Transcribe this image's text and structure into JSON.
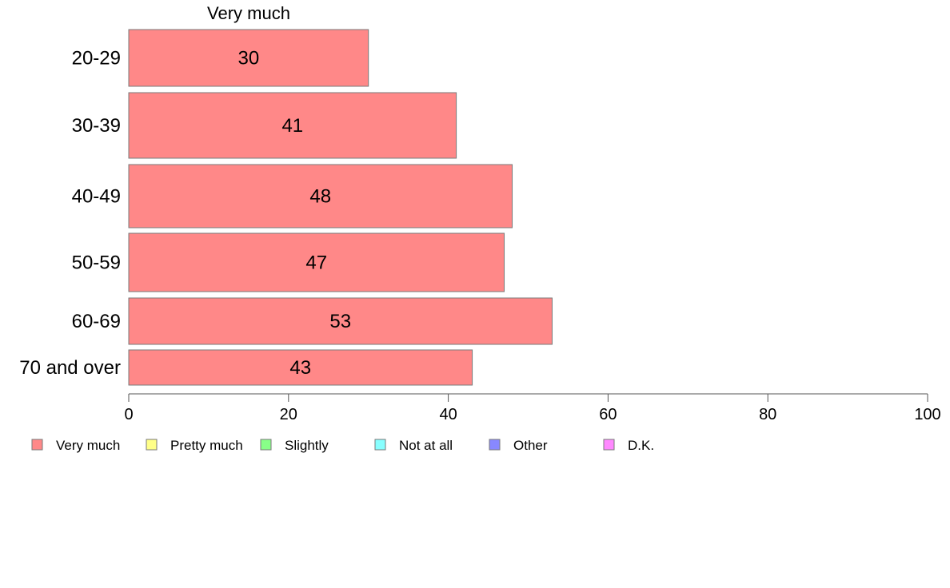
{
  "chart_data": {
    "type": "bar",
    "orientation": "horizontal",
    "stacked": true,
    "column_header": "Very much",
    "categories": [
      "20-29",
      "30-39",
      "40-49",
      "50-59",
      "60-69",
      "70 and over"
    ],
    "series": [
      {
        "name": "Very much",
        "values": [
          30,
          41,
          48,
          47,
          53,
          43
        ]
      }
    ],
    "xlim": [
      0,
      100
    ],
    "xticks": [
      0,
      20,
      40,
      60,
      80,
      100
    ],
    "grid": false,
    "legend_position": "bottom",
    "legend": [
      {
        "name": "Very much",
        "color": "#ff8888"
      },
      {
        "name": "Pretty much",
        "color": "#ffff88"
      },
      {
        "name": "Slightly",
        "color": "#88ff88"
      },
      {
        "name": "Not at all",
        "color": "#88ffff"
      },
      {
        "name": "Other",
        "color": "#8888ff"
      },
      {
        "name": "D.K.",
        "color": "#ff88ff"
      }
    ]
  }
}
